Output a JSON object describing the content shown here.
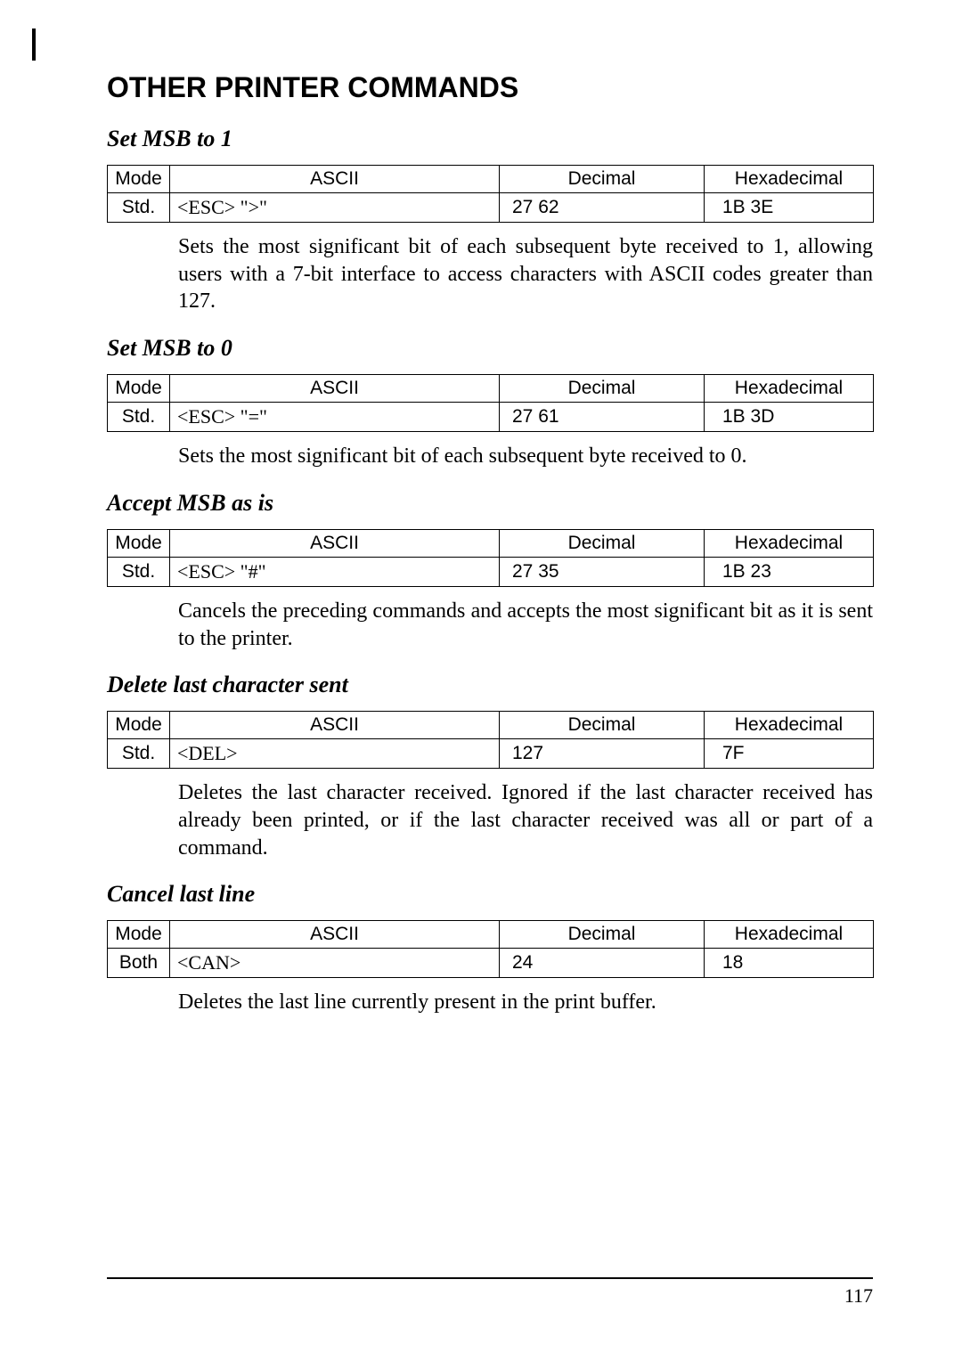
{
  "main_title": "OTHER PRINTER COMMANDS",
  "sections": [
    {
      "title": "Set MSB to 1",
      "headers": {
        "mode": "Mode",
        "ascii": "ASCII",
        "decimal": "Decimal",
        "hex": "Hexadecimal"
      },
      "row": {
        "mode": "Std.",
        "ascii": "<ESC>   \">\"",
        "decimal": "27   62",
        "hex": "1B   3E"
      },
      "desc": "Sets the most significant bit of each subsequent byte received to 1, allowing users with a 7-bit interface to access characters with ASCII codes greater than 127."
    },
    {
      "title": "Set MSB to 0",
      "headers": {
        "mode": "Mode",
        "ascii": "ASCII",
        "decimal": "Decimal",
        "hex": "Hexadecimal"
      },
      "row": {
        "mode": "Std.",
        "ascii": "<ESC>   \"=\"",
        "decimal": "27   61",
        "hex": "1B   3D"
      },
      "desc": "Sets the most significant bit of each subsequent byte received to 0."
    },
    {
      "title": "Accept MSB as is",
      "headers": {
        "mode": "Mode",
        "ascii": "ASCII",
        "decimal": "Decimal",
        "hex": "Hexadecimal"
      },
      "row": {
        "mode": "Std.",
        "ascii": "<ESC>   \"#\"",
        "decimal": "27   35",
        "hex": "1B   23"
      },
      "desc": "Cancels the preceding commands and accepts the most significant bit as it is sent to the printer."
    },
    {
      "title": "Delete last character sent",
      "headers": {
        "mode": "Mode",
        "ascii": "ASCII",
        "decimal": "Decimal",
        "hex": "Hexadecimal"
      },
      "row": {
        "mode": "Std.",
        "ascii": "<DEL>",
        "decimal": "127",
        "hex": "7F"
      },
      "desc": "Deletes the last character received. Ignored if the last character received has already been printed, or if the last character received was all or part of a command."
    },
    {
      "title": "Cancel last line",
      "headers": {
        "mode": "Mode",
        "ascii": "ASCII",
        "decimal": "Decimal",
        "hex": "Hexadecimal"
      },
      "row": {
        "mode": "Both",
        "ascii": "<CAN>",
        "decimal": "24",
        "hex": "18"
      },
      "desc": "Deletes the last line currently present in the print buffer."
    }
  ],
  "page_number": "117"
}
